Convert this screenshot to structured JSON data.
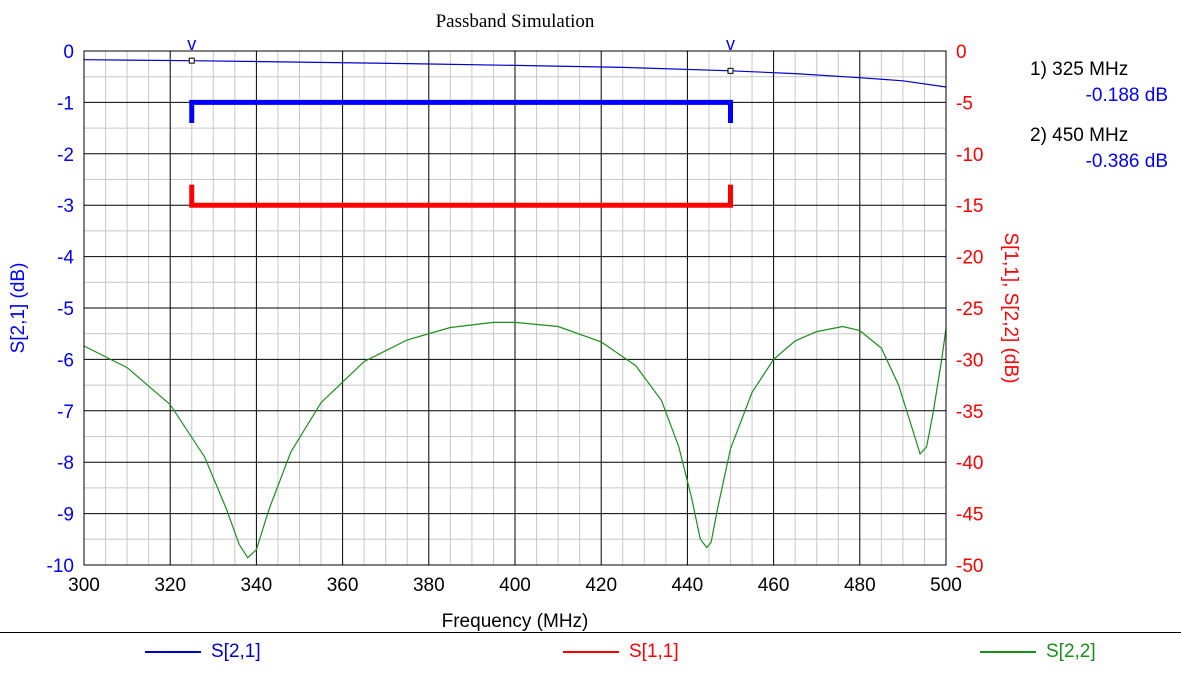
{
  "chart_data": {
    "type": "line",
    "title": "Passband Simulation",
    "xlabel": "Frequency (MHz)",
    "ylabel_left": "S[2,1] (dB)",
    "ylabel_right": "S[1,1], S[2,2] (dB)",
    "xlim": [
      300,
      500
    ],
    "ylim_left": [
      -10,
      0
    ],
    "ylim_right": [
      -50,
      0
    ],
    "x_ticks": [
      "300",
      "320",
      "340",
      "360",
      "380",
      "400",
      "420",
      "440",
      "460",
      "480",
      "500"
    ],
    "y_ticks_left": [
      "0",
      "-1",
      "-2",
      "-3",
      "-4",
      "-5",
      "-6",
      "-7",
      "-8",
      "-9",
      "-10"
    ],
    "y_ticks_right": [
      "0",
      "-5",
      "-10",
      "-15",
      "-20",
      "-25",
      "-30",
      "-35",
      "-40",
      "-45",
      "-50"
    ],
    "grid": true,
    "series": [
      {
        "name": "S[2,1]",
        "axis": "left",
        "color": "#0000cc",
        "x": [
          300,
          325,
          350,
          375,
          400,
          425,
          450,
          465,
          480,
          490,
          500
        ],
        "y": [
          -0.17,
          -0.188,
          -0.215,
          -0.245,
          -0.28,
          -0.32,
          -0.386,
          -0.44,
          -0.52,
          -0.58,
          -0.7
        ]
      },
      {
        "name": "S[1,1]",
        "axis": "right",
        "color": "#ff0000",
        "x": [],
        "y": []
      },
      {
        "name": "S[2,2]",
        "axis": "right",
        "color": "#1a8f1a",
        "x": [
          300,
          310,
          320,
          328,
          333,
          336,
          338,
          340,
          343,
          348,
          355,
          365,
          375,
          385,
          395,
          400,
          410,
          420,
          428,
          434,
          438,
          441,
          443,
          444.5,
          445.5,
          447,
          450,
          455,
          460,
          465,
          470,
          476,
          480,
          485,
          489,
          492,
          494,
          495.5,
          497,
          499,
          500
        ],
        "y": [
          -28.7,
          -30.8,
          -34.4,
          -39.5,
          -44.5,
          -48,
          -49.3,
          -48.5,
          -44.5,
          -39,
          -34.2,
          -30.2,
          -28.1,
          -26.9,
          -26.4,
          -26.4,
          -26.8,
          -28.3,
          -30.6,
          -34,
          -38.5,
          -43.5,
          -47.5,
          -48.3,
          -47.8,
          -44.5,
          -38.7,
          -33.2,
          -30,
          -28.2,
          -27.3,
          -26.8,
          -27.2,
          -28.9,
          -32.5,
          -36.5,
          -39.2,
          -38.5,
          -35.2,
          -30,
          -27
        ]
      }
    ],
    "markers": [
      {
        "num": "1",
        "x": 325,
        "y": -0.188,
        "series": "S[2,1]",
        "label": "1) 325 MHz",
        "value": "-0.188 dB"
      },
      {
        "num": "2",
        "x": 450,
        "y": -0.386,
        "series": "S[2,1]",
        "label": "2) 450 MHz",
        "value": "-0.386 dB"
      }
    ],
    "marker_glyph": "v",
    "spec_lines": [
      {
        "axis": "left",
        "color": "#0000ff",
        "x1": 325,
        "x2": 450,
        "y": -1,
        "tick_dir": "down",
        "tick_len": -0.4
      },
      {
        "axis": "right",
        "color": "#ff0000",
        "x1": 325,
        "x2": 450,
        "y": -15,
        "tick_dir": "up",
        "tick_len": 2
      }
    ]
  },
  "legend": [
    {
      "name": "S[2,1]",
      "color": "#0000cc"
    },
    {
      "name": "S[1,1]",
      "color": "#ff0000"
    },
    {
      "name": "S[2,2]",
      "color": "#1a8f1a"
    }
  ]
}
